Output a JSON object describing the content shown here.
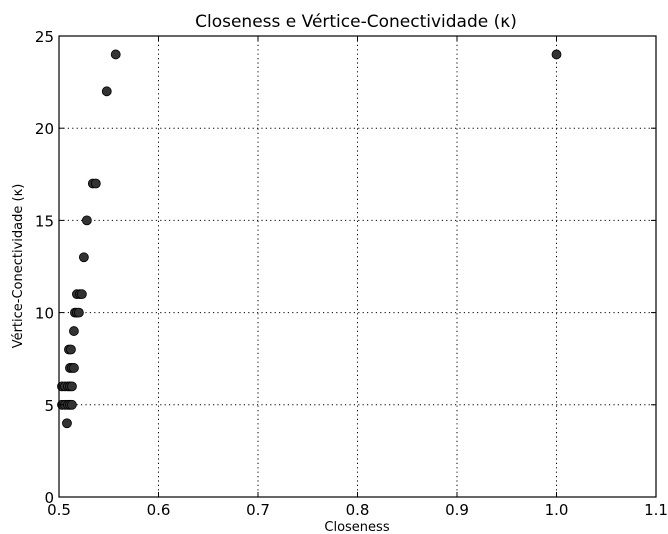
{
  "chart_data": {
    "type": "scatter",
    "title": "Closeness e Vértice-Conectividade (κ)",
    "xlabel": "Closeness",
    "ylabel": "Vértice-Conectividade (κ)",
    "xlim": [
      0.5,
      1.1
    ],
    "ylim": [
      0,
      25
    ],
    "xticks": [
      0.5,
      0.6,
      0.7,
      0.8,
      0.9,
      1.0,
      1.1
    ],
    "xtick_labels": [
      "0.5",
      "0.6",
      "0.7",
      "0.8",
      "0.9",
      "1.0",
      "1.1"
    ],
    "yticks": [
      0,
      5,
      10,
      15,
      20,
      25
    ],
    "ytick_labels": [
      "0",
      "5",
      "10",
      "15",
      "20",
      "25"
    ],
    "grid": true,
    "marker_color": "#333333",
    "points": [
      {
        "x": 0.508,
        "y": 4
      },
      {
        "x": 0.503,
        "y": 5
      },
      {
        "x": 0.506,
        "y": 5
      },
      {
        "x": 0.509,
        "y": 5
      },
      {
        "x": 0.511,
        "y": 5
      },
      {
        "x": 0.513,
        "y": 5
      },
      {
        "x": 0.503,
        "y": 6
      },
      {
        "x": 0.506,
        "y": 6
      },
      {
        "x": 0.509,
        "y": 6
      },
      {
        "x": 0.511,
        "y": 6
      },
      {
        "x": 0.513,
        "y": 6
      },
      {
        "x": 0.511,
        "y": 7
      },
      {
        "x": 0.513,
        "y": 7
      },
      {
        "x": 0.515,
        "y": 7
      },
      {
        "x": 0.51,
        "y": 8
      },
      {
        "x": 0.512,
        "y": 8
      },
      {
        "x": 0.515,
        "y": 9
      },
      {
        "x": 0.516,
        "y": 10
      },
      {
        "x": 0.518,
        "y": 10
      },
      {
        "x": 0.52,
        "y": 10
      },
      {
        "x": 0.518,
        "y": 11
      },
      {
        "x": 0.521,
        "y": 11
      },
      {
        "x": 0.523,
        "y": 11
      },
      {
        "x": 0.525,
        "y": 13
      },
      {
        "x": 0.528,
        "y": 15
      },
      {
        "x": 0.534,
        "y": 17
      },
      {
        "x": 0.537,
        "y": 17
      },
      {
        "x": 0.548,
        "y": 22
      },
      {
        "x": 0.557,
        "y": 24
      },
      {
        "x": 1.0,
        "y": 24
      }
    ]
  }
}
